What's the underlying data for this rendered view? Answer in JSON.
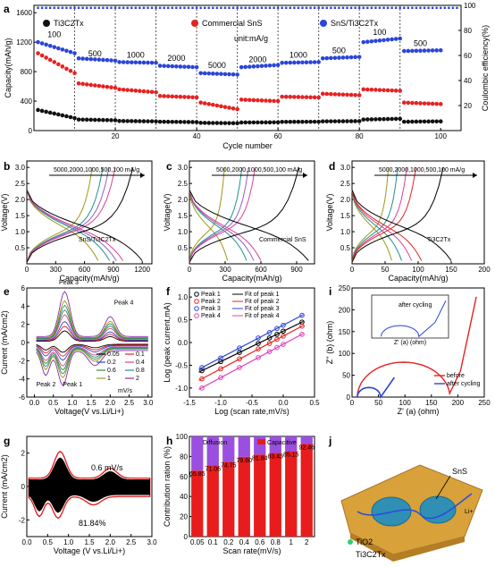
{
  "chart_data": [
    {
      "panel": "a",
      "type": "scatter",
      "xlabel": "Cycle number",
      "ylabel": "Capacity(mAh/g)",
      "y2label": "Coulombic efficiency(%)",
      "xlim": [
        0,
        105
      ],
      "ylim": [
        0,
        1700
      ],
      "y2lim": [
        0,
        100
      ],
      "xticks": [
        "20",
        "40",
        "60",
        "80",
        "100"
      ],
      "yticks": [
        "0",
        "400",
        "800",
        "1200",
        "1600"
      ],
      "y2ticks": [
        "20",
        "40",
        "60",
        "80",
        "100"
      ],
      "unit_note": "unit:mA/g",
      "rate_labels": [
        "100",
        "500",
        "1000",
        "2000",
        "5000",
        "2000",
        "1000",
        "500",
        "100",
        "500"
      ],
      "rate_boundaries": [
        10,
        20,
        30,
        40,
        50,
        60,
        70,
        80,
        90
      ],
      "series": [
        {
          "name": "Ti3C2Tx",
          "color": "#111111",
          "segments": [
            [
              280,
              170
            ],
            [
              150,
              140
            ],
            [
              130,
              125
            ],
            [
              120,
              115
            ],
            [
              105,
              100
            ],
            [
              110,
              112
            ],
            [
              118,
              120
            ],
            [
              125,
              128
            ],
            [
              150,
              160
            ],
            [
              120,
              125
            ]
          ]
        },
        {
          "name": "Commercial SnS",
          "color": "#e52222",
          "segments": [
            [
              1050,
              780
            ],
            [
              640,
              580
            ],
            [
              560,
              520
            ],
            [
              470,
              450
            ],
            [
              380,
              290
            ],
            [
              420,
              400
            ],
            [
              460,
              450
            ],
            [
              500,
              480
            ],
            [
              560,
              540
            ],
            [
              380,
              360
            ]
          ]
        },
        {
          "name": "SnS/Ti3C2Tx",
          "color": "#2b45d8",
          "segments": [
            [
              1200,
              1050
            ],
            [
              980,
              950
            ],
            [
              930,
              920
            ],
            [
              880,
              860
            ],
            [
              780,
              760
            ],
            [
              860,
              890
            ],
            [
              920,
              930
            ],
            [
              980,
              1000
            ],
            [
              1200,
              1250
            ],
            [
              1080,
              1090
            ]
          ]
        }
      ],
      "coulombic_efficiency": 98
    },
    {
      "panel": "b",
      "type": "line",
      "xlabel": "Capacity(mAh/g)",
      "ylabel": "Voltage(V)",
      "xlim": [
        0,
        1300
      ],
      "ylim": [
        0,
        3.2
      ],
      "xticks": [
        "0",
        "300",
        "600",
        "900",
        "1200"
      ],
      "yticks": [
        "0.5",
        "1.0",
        "1.5",
        "2.0",
        "2.5",
        "3.0"
      ],
      "rate_arrow": "5000,2000,1000,500,100 mA/g",
      "sample": "SnS/Ti3C2Tx",
      "max_capacity": [
        740,
        860,
        930,
        1000,
        1200
      ],
      "colors": [
        "#9a9a18",
        "#1f8f8f",
        "#9060c0",
        "#e04090",
        "#000000"
      ]
    },
    {
      "panel": "c",
      "type": "line",
      "xlabel": "Capacity(mAh/g)",
      "ylabel": "Voltage(V)",
      "xlim": [
        0,
        1050
      ],
      "ylim": [
        0,
        3.2
      ],
      "xticks": [
        "0",
        "300",
        "600",
        "900"
      ],
      "yticks": [
        "0.5",
        "1.0",
        "1.5",
        "2.0",
        "2.5",
        "3.0"
      ],
      "rate_arrow": "5000,2000,1000,500,100 mA/g",
      "sample": "Commercial SnS",
      "max_capacity": [
        320,
        480,
        540,
        600,
        1000
      ],
      "colors": [
        "#9a9a18",
        "#1f8f8f",
        "#9060c0",
        "#e04090",
        "#000000"
      ]
    },
    {
      "panel": "d",
      "type": "line",
      "xlabel": "Capacity(mAh/g)",
      "ylabel": "Voltage(V)",
      "xlim": [
        0,
        200
      ],
      "ylim": [
        0,
        3.2
      ],
      "xticks": [
        "0",
        "50",
        "100",
        "150",
        "200"
      ],
      "yticks": [
        "0.5",
        "1.0",
        "1.5",
        "2.0",
        "2.5",
        "3.0"
      ],
      "rate_arrow": "5000,2000,1000,500,100 mA/g",
      "sample": "Ti3C2Tx",
      "max_capacity": [
        60,
        75,
        90,
        105,
        150
      ],
      "colors": [
        "#9a9a18",
        "#1f8f8f",
        "#e04090",
        "#e52222",
        "#000000"
      ]
    },
    {
      "panel": "e",
      "type": "line",
      "xlabel": "Voltage(V vs.Li/Li+)",
      "ylabel": "Current (mA/cm2)",
      "xlim": [
        -0.2,
        3.1
      ],
      "ylim": [
        -6,
        6
      ],
      "xticks": [
        "0.0",
        "0.5",
        "1.0",
        "1.5",
        "2.0",
        "2.5",
        "3.0"
      ],
      "yticks": [
        "-6",
        "-4",
        "-2",
        "0",
        "2",
        "4",
        "6"
      ],
      "peaks": [
        "Peak 1",
        "Peak 2",
        "Peak 3",
        "Peak 4"
      ],
      "scan_rates": [
        "0.05",
        "0.1",
        "0.2",
        "0.4",
        "0.6",
        "0.8",
        "1",
        "2"
      ],
      "scan_unit": "mV/s",
      "colors": [
        "#000000",
        "#e52222",
        "#2b45d8",
        "#e04090",
        "#3a8a3a",
        "#1f8f8f",
        "#9a9a18",
        "#8a2aa0"
      ]
    },
    {
      "panel": "f",
      "type": "scatter",
      "xlabel": "Log (scan rate,mV/s)",
      "ylabel": "Log (peak current,mA)",
      "xlim": [
        -1.5,
        0.5
      ],
      "ylim": [
        -1.2,
        1.2
      ],
      "xticks": [
        "-1.5",
        "-1.0",
        "-0.5",
        "0.0",
        "0.5"
      ],
      "yticks": [
        "-1.0",
        "-0.5",
        "0.0",
        "0.5",
        "1.0"
      ],
      "x": [
        -1.3,
        -1.0,
        -0.7,
        -0.4,
        -0.22,
        -0.1,
        0.0,
        0.3
      ],
      "series": [
        {
          "name": "Peak 1",
          "fit": "Fit of peak 1",
          "color": "#000000",
          "values": [
            -0.62,
            -0.42,
            -0.22,
            -0.02,
            0.1,
            0.18,
            0.25,
            0.45
          ]
        },
        {
          "name": "Peak 2",
          "fit": "Fit of peak 2",
          "color": "#e52222",
          "values": [
            -0.8,
            -0.58,
            -0.36,
            -0.14,
            -0.02,
            0.07,
            0.14,
            0.36
          ]
        },
        {
          "name": "Peak 3",
          "fit": "Fit of peak 3",
          "color": "#2b45d8",
          "values": [
            -0.55,
            -0.34,
            -0.12,
            0.1,
            0.22,
            0.31,
            0.38,
            0.6
          ]
        },
        {
          "name": "Peak 4",
          "fit": "Fit of peak 4",
          "color": "#e040c0",
          "values": [
            -1.0,
            -0.77,
            -0.55,
            -0.33,
            -0.2,
            -0.11,
            -0.04,
            0.18
          ]
        }
      ]
    },
    {
      "panel": "i",
      "type": "line",
      "xlabel": "Z' (a) (ohm)",
      "ylabel": "Z'' (b) (ohm)",
      "xlim": [
        0,
        250
      ],
      "ylim": [
        0,
        250
      ],
      "xticks": [
        "0",
        "50",
        "100",
        "150",
        "200",
        "250"
      ],
      "yticks": [
        "0",
        "50",
        "100",
        "150",
        "200",
        "250"
      ],
      "series": [
        {
          "name": "before",
          "color": "#e52222"
        },
        {
          "name": "after cycling",
          "color": "#2b45d8"
        }
      ],
      "inset": {
        "xlabel": "Z' (a) (ohm)",
        "ylabel": "Z'' (b) (ohm)",
        "xticks": [
          "20",
          "30",
          "40",
          "50",
          "60",
          "70"
        ],
        "yticks": [
          "0",
          "10",
          "20",
          "30",
          "40",
          "50"
        ],
        "legend": "after cycling"
      }
    },
    {
      "panel": "g",
      "type": "area",
      "xlabel": "Voltage (V vs.Li/Li+)",
      "ylabel": "Current (mA/cm2)",
      "xlim": [
        0,
        3
      ],
      "ylim": [
        -3,
        3
      ],
      "xticks": [
        "0.0",
        "0.5",
        "1.0",
        "1.5",
        "2.0",
        "2.5",
        "3.0"
      ],
      "yticks": [
        "-2",
        "0",
        "2"
      ],
      "scan_rate_label": "0.6 mV/s",
      "capacitive_label": "81.84%"
    },
    {
      "panel": "h",
      "type": "bar",
      "xlabel": "Scan rate(mV/s)",
      "ylabel": "Contribution ration (%)",
      "ylim": [
        0,
        100
      ],
      "yticks": [
        "0",
        "20",
        "40",
        "60",
        "80",
        "100"
      ],
      "categories": [
        "0.05",
        "0.1",
        "0.2",
        "0.4",
        "0.6",
        "0.8",
        "1",
        "2"
      ],
      "series": [
        {
          "name": "Diffusion",
          "color": "#9b4fe0"
        },
        {
          "name": "Capacitive",
          "color": "#e81c1c",
          "values": [
            65.85,
            71.06,
            74.75,
            79.6,
            81.84,
            83.43,
            85.15,
            92.46
          ]
        }
      ],
      "bar_labels": [
        "65.85",
        "71.06",
        "74.75",
        "79.60",
        "81.84",
        "83.43",
        "85.15",
        "92.46"
      ]
    }
  ],
  "panel_letters": [
    "a",
    "b",
    "c",
    "d",
    "e",
    "f",
    "i",
    "g",
    "h",
    "j"
  ],
  "schematic": {
    "sns_label": "SnS",
    "tio2_label": "TiO2",
    "mxene_label": "Ti3C2Tx",
    "li_label": "Li+"
  }
}
